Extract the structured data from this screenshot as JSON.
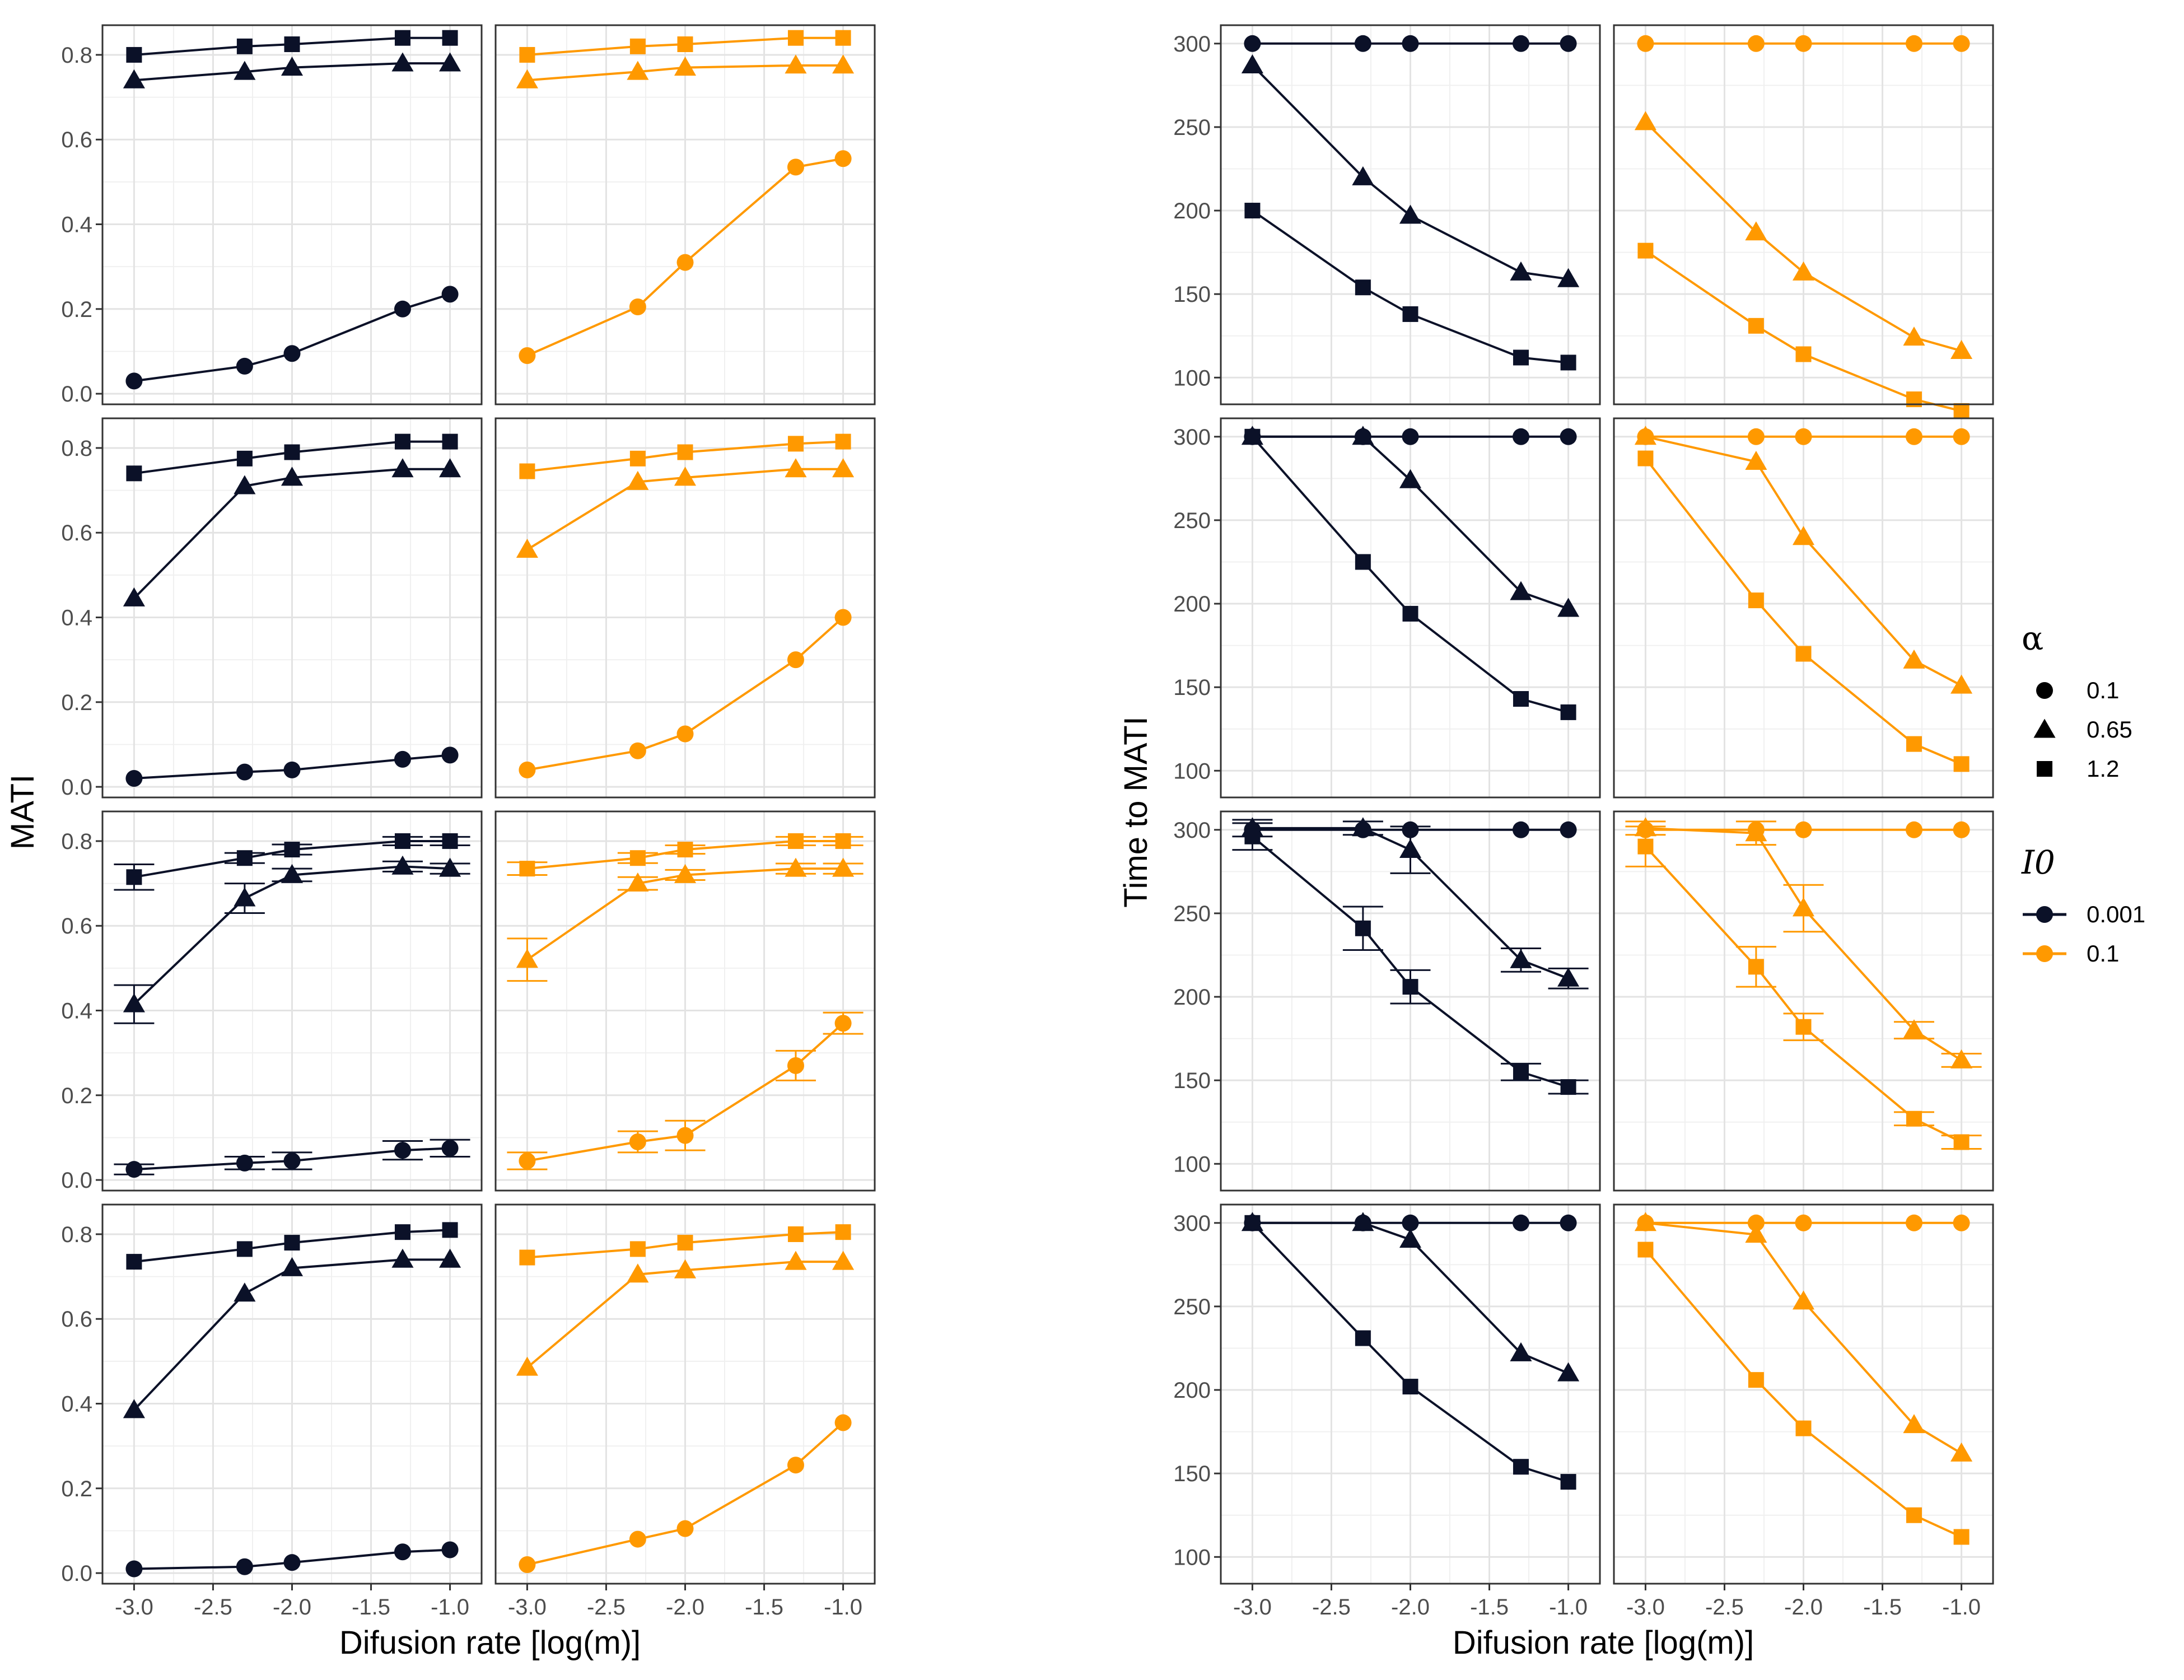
{
  "chart_data": {
    "type": "line",
    "colors": {
      "0.001": "#0b1128",
      "0.1": "#ff9900"
    },
    "x": [
      -3.0,
      -2.3,
      -2.0,
      -1.3,
      -1.0
    ],
    "x_ticks": [
      "-3.0",
      "-2.5",
      "-2.0",
      "-1.5",
      "-1.0"
    ],
    "xlim": [
      -3.2,
      -0.8
    ],
    "xlabel": "Difusion rate [log(m)]",
    "left_panel": {
      "ylabel": "MATI",
      "ylim": [
        -0.025,
        0.87
      ],
      "y_ticks": [
        "0.0",
        "0.2",
        "0.4",
        "0.6",
        "0.8"
      ],
      "rows": [
        {
          "0.001": {
            "0.1": [
              0.03,
              0.065,
              0.095,
              0.2,
              0.235
            ],
            "0.65": [
              0.74,
              0.76,
              0.77,
              0.78,
              0.78
            ],
            "1.2": [
              0.8,
              0.82,
              0.825,
              0.84,
              0.84
            ]
          },
          "0.1": {
            "0.1": [
              0.09,
              0.205,
              0.31,
              0.535,
              0.555
            ],
            "0.65": [
              0.74,
              0.76,
              0.77,
              0.775,
              0.775
            ],
            "1.2": [
              0.8,
              0.82,
              0.825,
              0.84,
              0.84
            ]
          }
        },
        {
          "0.001": {
            "0.1": [
              0.02,
              0.035,
              0.04,
              0.065,
              0.075
            ],
            "0.65": [
              0.445,
              0.71,
              0.73,
              0.75,
              0.75
            ],
            "1.2": [
              0.74,
              0.775,
              0.79,
              0.815,
              0.815
            ]
          },
          "0.1": {
            "0.1": [
              0.04,
              0.085,
              0.125,
              0.3,
              0.4
            ],
            "0.65": [
              0.56,
              0.72,
              0.73,
              0.75,
              0.75
            ],
            "1.2": [
              0.745,
              0.775,
              0.79,
              0.81,
              0.815
            ]
          }
        },
        {
          "0.001": {
            "0.1": [
              0.025,
              0.04,
              0.045,
              0.07,
              0.075
            ],
            "0.65": [
              0.415,
              0.665,
              0.72,
              0.74,
              0.735
            ],
            "1.2": [
              0.715,
              0.76,
              0.78,
              0.8,
              0.8
            ]
          },
          "0.1": {
            "0.1": [
              0.045,
              0.09,
              0.105,
              0.27,
              0.37
            ],
            "0.65": [
              0.52,
              0.7,
              0.72,
              0.735,
              0.735
            ],
            "1.2": [
              0.735,
              0.76,
              0.78,
              0.8,
              0.8
            ]
          },
          "errors": {
            "0.001": {
              "0.1": [
                0.012,
                0.015,
                0.02,
                0.022,
                0.02
              ],
              "0.65": [
                0.045,
                0.035,
                0.015,
                0.012,
                0.012
              ],
              "1.2": [
                0.03,
                0.012,
                0.012,
                0.01,
                0.01
              ]
            },
            "0.1": {
              "0.1": [
                0.02,
                0.025,
                0.035,
                0.035,
                0.025
              ],
              "0.65": [
                0.05,
                0.015,
                0.012,
                0.012,
                0.012
              ],
              "1.2": [
                0.015,
                0.012,
                0.01,
                0.01,
                0.01
              ]
            }
          }
        },
        {
          "0.001": {
            "0.1": [
              0.01,
              0.015,
              0.025,
              0.05,
              0.055
            ],
            "0.65": [
              0.385,
              0.66,
              0.72,
              0.74,
              0.74
            ],
            "1.2": [
              0.735,
              0.765,
              0.78,
              0.805,
              0.81
            ]
          },
          "0.1": {
            "0.1": [
              0.02,
              0.08,
              0.105,
              0.255,
              0.355
            ],
            "0.65": [
              0.485,
              0.705,
              0.715,
              0.735,
              0.735
            ],
            "1.2": [
              0.745,
              0.765,
              0.78,
              0.8,
              0.805
            ]
          }
        }
      ]
    },
    "right_panel": {
      "ylabel": "Time to MATI",
      "ylim": [
        84,
        311
      ],
      "y_ticks": [
        "100",
        "150",
        "200",
        "250",
        "300"
      ],
      "rows": [
        {
          "0.001": {
            "0.1": [
              300,
              300,
              300,
              300,
              300
            ],
            "0.65": [
              287,
              220,
              197,
              163,
              159
            ],
            "1.2": [
              200,
              154,
              138,
              112,
              109
            ]
          },
          "0.1": {
            "0.1": [
              300,
              300,
              300,
              300,
              300
            ],
            "0.65": [
              253,
              187,
              163,
              124,
              116
            ],
            "1.2": [
              176,
              131,
              114,
              87,
              80
            ]
          }
        },
        {
          "0.001": {
            "0.1": [
              300,
              300,
              300,
              300,
              300
            ],
            "0.65": [
              300,
              300,
              274,
              207,
              197
            ],
            "1.2": [
              300,
              225,
              194,
              143,
              135
            ]
          },
          "0.1": {
            "0.1": [
              300,
              300,
              300,
              300,
              300
            ],
            "0.65": [
              300,
              285,
              240,
              166,
              151
            ],
            "1.2": [
              287,
              202,
              170,
              116,
              104
            ]
          }
        },
        {
          "0.001": {
            "0.1": [
              300,
              300,
              300,
              300,
              300
            ],
            "0.65": [
              301,
              301,
              288,
              222,
              211
            ],
            "1.2": [
              296,
              241,
              206,
              155,
              146
            ]
          },
          "0.1": {
            "0.1": [
              300,
              300,
              300,
              300,
              300
            ],
            "0.65": [
              301,
              298,
              253,
              180,
              162
            ],
            "1.2": [
              290,
              218,
              182,
              127,
              113
            ]
          },
          "errors": {
            "0.001": {
              "0.1": [
                0,
                0,
                0,
                0,
                0
              ],
              "0.65": [
                5,
                4,
                14,
                7,
                6
              ],
              "1.2": [
                8,
                13,
                10,
                5,
                4
              ]
            },
            "0.1": {
              "0.1": [
                0,
                0,
                0,
                0,
                0
              ],
              "0.65": [
                4,
                7,
                14,
                5,
                4
              ],
              "1.2": [
                12,
                12,
                8,
                4,
                4
              ]
            }
          }
        },
        {
          "0.001": {
            "0.1": [
              300,
              300,
              300,
              300,
              300
            ],
            "0.65": [
              300,
              300,
              290,
              222,
              210
            ],
            "1.2": [
              300,
              231,
              202,
              154,
              145
            ]
          },
          "0.1": {
            "0.1": [
              300,
              300,
              300,
              300,
              300
            ],
            "0.65": [
              300,
              293,
              253,
              179,
              162
            ],
            "1.2": [
              284,
              206,
              177,
              125,
              112
            ]
          }
        }
      ]
    },
    "legend": {
      "position": "right",
      "shape_title": "α",
      "shape_entries": [
        {
          "label": "0.1",
          "shape": "circle"
        },
        {
          "label": "0.65",
          "shape": "triangle"
        },
        {
          "label": "1.2",
          "shape": "square"
        }
      ],
      "color_title": "I0",
      "color_entries": [
        {
          "label": "0.001",
          "color": "#0b1128"
        },
        {
          "label": "0.1",
          "color": "#ff9900"
        }
      ]
    },
    "grid": true
  }
}
